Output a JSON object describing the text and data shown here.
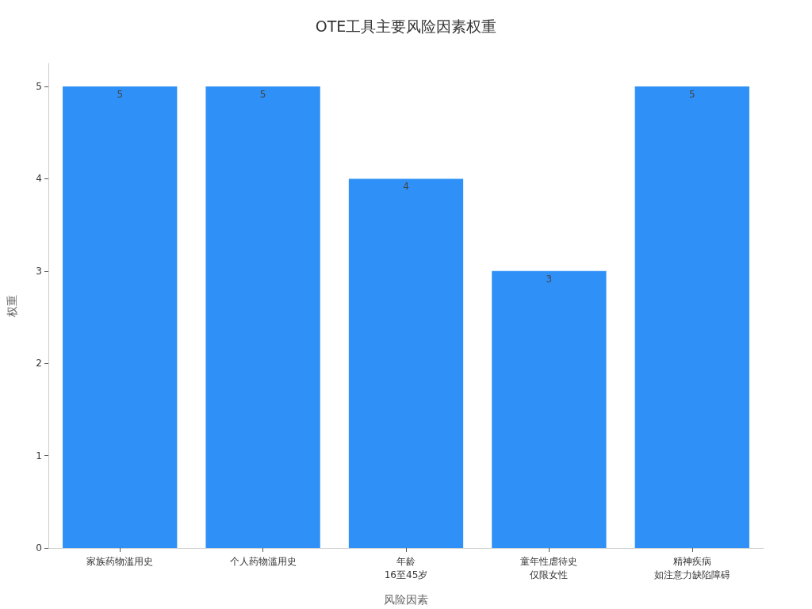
{
  "chart_data": {
    "type": "bar",
    "title": "OTE工具主要风险因素权重",
    "xlabel": "风险因素",
    "ylabel": "权重",
    "categories": [
      "家族药物滥用史",
      "个人药物滥用史",
      "年龄16至45岁",
      "童年性虐待史仅限女性",
      "精神疾病如注意力缺陷障碍"
    ],
    "values": [
      5,
      5,
      4,
      3,
      5
    ],
    "color": "#2f91f7",
    "ylim": [
      0,
      5.25
    ],
    "yticks": [
      0,
      1,
      2,
      3,
      4,
      5
    ],
    "data_labels": true
  }
}
